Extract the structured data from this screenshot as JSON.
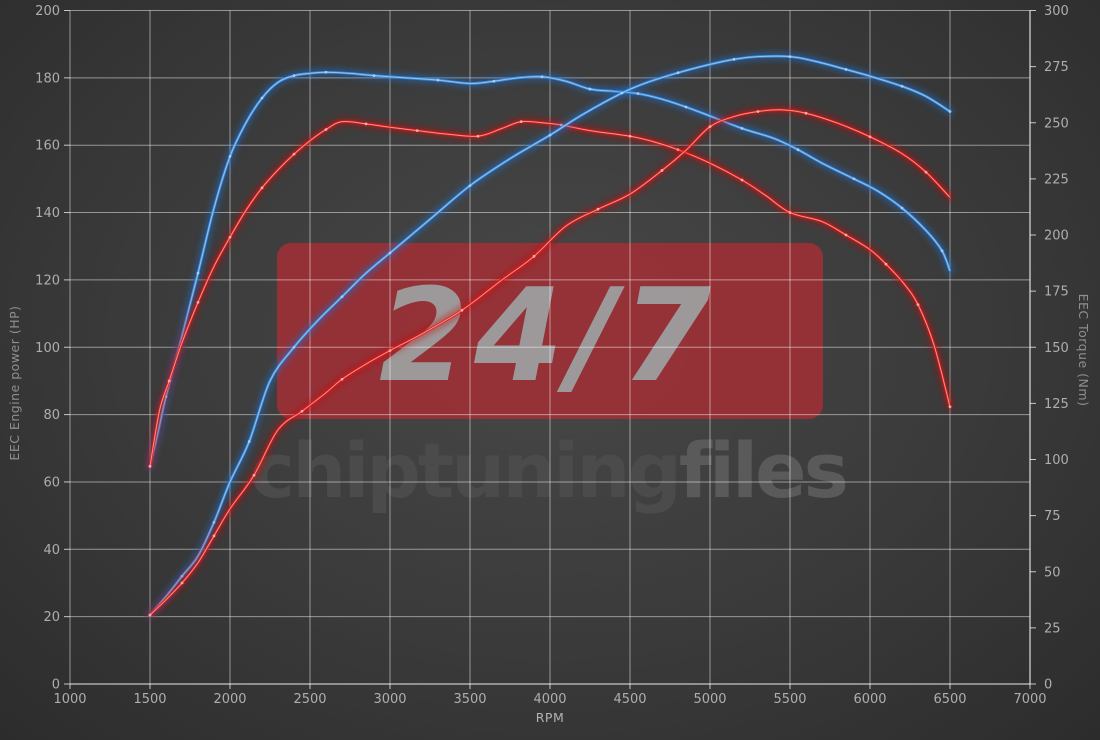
{
  "watermark": {
    "badge_text": "24/7",
    "brand_dark": "chiptuning",
    "brand_light": "files",
    "badge_color": "#a52f36",
    "badge_text_color": "#9e9e9e",
    "brand_dark_color": "#4b4b4b",
    "brand_light_color": "#5a5a5a"
  },
  "chart_data": {
    "type": "line",
    "title": "",
    "xlabel": "RPM",
    "ylabel_left": "EEC Engine power (HP)",
    "ylabel_right": "EEC Torque (Nm)",
    "xlim": [
      1000,
      7000
    ],
    "ylim_left": [
      0,
      200
    ],
    "ylim_right": [
      0,
      300
    ],
    "x_ticks": [
      1000,
      1500,
      2000,
      2500,
      3000,
      3500,
      4000,
      4500,
      5000,
      5500,
      6000,
      6500,
      7000
    ],
    "y_left_ticks": [
      0,
      20,
      40,
      60,
      80,
      100,
      120,
      140,
      160,
      180,
      200
    ],
    "y_right_ticks": [
      0,
      25,
      50,
      75,
      100,
      125,
      150,
      175,
      200,
      225,
      250,
      275,
      300
    ],
    "grid": true,
    "legend": "none",
    "colors": {
      "grid": "rgba(255,255,255,0.48)",
      "axis": "rgba(255,255,255,0.72)",
      "blue_glow": "#1f6fd0",
      "blue_line": "#3d8fe0",
      "blue_core": "#a9d0f5",
      "red_glow": "#c40f0f",
      "red_line": "#e01717",
      "red_core": "#ffb0a8"
    },
    "series": [
      {
        "name": "tuned-torque-nm",
        "axis": "right",
        "unit": "Nm",
        "color_key": "blue",
        "peak": "272 Nm @ 2600",
        "points": [
          [
            1500,
            97
          ],
          [
            1550,
            112
          ],
          [
            1600,
            128
          ],
          [
            1700,
            155
          ],
          [
            1800,
            183
          ],
          [
            1900,
            212
          ],
          [
            2000,
            235
          ],
          [
            2100,
            250
          ],
          [
            2200,
            261
          ],
          [
            2300,
            268
          ],
          [
            2400,
            271
          ],
          [
            2500,
            272
          ],
          [
            2600,
            272.5
          ],
          [
            2750,
            272
          ],
          [
            2900,
            271
          ],
          [
            3100,
            270
          ],
          [
            3300,
            269
          ],
          [
            3500,
            267.5
          ],
          [
            3650,
            268.5
          ],
          [
            3800,
            270
          ],
          [
            3950,
            270.5
          ],
          [
            4100,
            268.5
          ],
          [
            4250,
            265
          ],
          [
            4400,
            264
          ],
          [
            4550,
            263
          ],
          [
            4700,
            260.5
          ],
          [
            4850,
            257
          ],
          [
            5000,
            253
          ],
          [
            5200,
            247.5
          ],
          [
            5400,
            243
          ],
          [
            5550,
            238
          ],
          [
            5700,
            232
          ],
          [
            5900,
            225
          ],
          [
            6050,
            219.5
          ],
          [
            6200,
            212
          ],
          [
            6350,
            202
          ],
          [
            6450,
            193
          ],
          [
            6500,
            184
          ]
        ]
      },
      {
        "name": "stock-torque-nm",
        "axis": "right",
        "unit": "Nm",
        "color_key": "red",
        "peak": "250.5 Nm @ 2700",
        "points": [
          [
            1500,
            97
          ],
          [
            1560,
            122
          ],
          [
            1620,
            135
          ],
          [
            1700,
            152
          ],
          [
            1800,
            170
          ],
          [
            1900,
            186
          ],
          [
            2000,
            199
          ],
          [
            2100,
            211
          ],
          [
            2200,
            221
          ],
          [
            2300,
            229
          ],
          [
            2400,
            236
          ],
          [
            2500,
            242
          ],
          [
            2600,
            247
          ],
          [
            2700,
            250.5
          ],
          [
            2850,
            249.5
          ],
          [
            3000,
            248
          ],
          [
            3170,
            246.5
          ],
          [
            3350,
            245
          ],
          [
            3550,
            244
          ],
          [
            3700,
            247.5
          ],
          [
            3820,
            250.5
          ],
          [
            3950,
            250
          ],
          [
            4070,
            249
          ],
          [
            4250,
            246.5
          ],
          [
            4500,
            244
          ],
          [
            4650,
            241.5
          ],
          [
            4800,
            238
          ],
          [
            5000,
            232
          ],
          [
            5200,
            224.5
          ],
          [
            5350,
            217.5
          ],
          [
            5500,
            210
          ],
          [
            5700,
            206
          ],
          [
            5850,
            200
          ],
          [
            6000,
            193.5
          ],
          [
            6100,
            187
          ],
          [
            6210,
            178.5
          ],
          [
            6300,
            169
          ],
          [
            6400,
            151
          ],
          [
            6500,
            123.5
          ]
        ]
      },
      {
        "name": "tuned-power-hp",
        "axis": "left",
        "unit": "HP",
        "color_key": "blue",
        "peak": "186.3 HP @ 5300",
        "points": [
          [
            1500,
            20.5
          ],
          [
            1600,
            26
          ],
          [
            1700,
            32
          ],
          [
            1800,
            38
          ],
          [
            1900,
            48
          ],
          [
            2000,
            60
          ],
          [
            2120,
            72
          ],
          [
            2250,
            90
          ],
          [
            2400,
            100
          ],
          [
            2550,
            108
          ],
          [
            2700,
            115
          ],
          [
            2850,
            122
          ],
          [
            3000,
            128
          ],
          [
            3250,
            138
          ],
          [
            3500,
            148
          ],
          [
            3750,
            156
          ],
          [
            4000,
            163
          ],
          [
            4200,
            169
          ],
          [
            4450,
            175.5
          ],
          [
            4600,
            178.5
          ],
          [
            4800,
            181.5
          ],
          [
            5000,
            184
          ],
          [
            5150,
            185.5
          ],
          [
            5300,
            186.3
          ],
          [
            5500,
            186.3
          ],
          [
            5650,
            185
          ],
          [
            5850,
            182.5
          ],
          [
            6000,
            180.5
          ],
          [
            6200,
            177.5
          ],
          [
            6350,
            174.5
          ],
          [
            6500,
            170
          ]
        ]
      },
      {
        "name": "stock-power-hp",
        "axis": "left",
        "unit": "HP",
        "color_key": "red",
        "peak": "170.5 HP @ 5450",
        "points": [
          [
            1500,
            20.5
          ],
          [
            1600,
            25
          ],
          [
            1700,
            30
          ],
          [
            1800,
            36
          ],
          [
            1900,
            44
          ],
          [
            2000,
            52
          ],
          [
            2150,
            62
          ],
          [
            2300,
            75.5
          ],
          [
            2450,
            81
          ],
          [
            2600,
            86.5
          ],
          [
            2700,
            90.5
          ],
          [
            2850,
            95
          ],
          [
            3000,
            99
          ],
          [
            3200,
            104
          ],
          [
            3450,
            111
          ],
          [
            3700,
            120
          ],
          [
            3900,
            127
          ],
          [
            4100,
            136
          ],
          [
            4300,
            141
          ],
          [
            4500,
            145.5
          ],
          [
            4700,
            152.5
          ],
          [
            4850,
            158.5
          ],
          [
            5000,
            165.5
          ],
          [
            5150,
            168.5
          ],
          [
            5300,
            170
          ],
          [
            5450,
            170.5
          ],
          [
            5600,
            169.5
          ],
          [
            5800,
            166.5
          ],
          [
            6000,
            162.5
          ],
          [
            6200,
            157.5
          ],
          [
            6350,
            152
          ],
          [
            6500,
            144.5
          ]
        ]
      }
    ]
  }
}
